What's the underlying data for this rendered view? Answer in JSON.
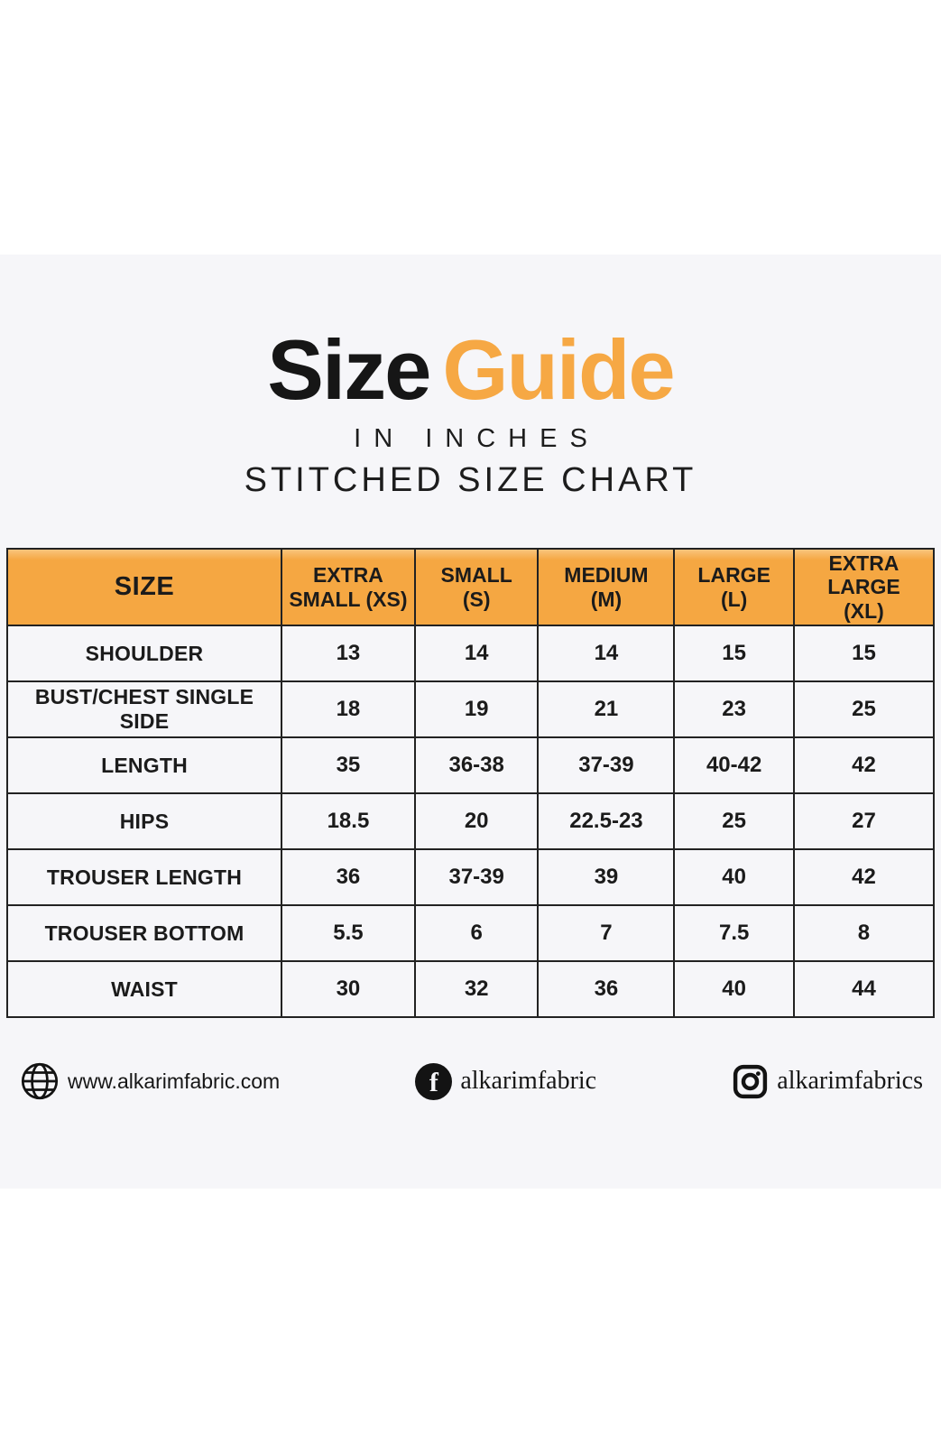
{
  "header": {
    "title_primary": "Size",
    "title_accent": "Guide",
    "subtitle_units": "IN INCHES",
    "subtitle_type": "STITCHED SIZE CHART"
  },
  "chart_data": {
    "type": "table",
    "title": "Size Guide",
    "subtitle": "IN INCHES — STITCHED SIZE CHART",
    "units": "inches",
    "columns": [
      "SIZE",
      "EXTRA SMALL (XS)",
      "SMALL (S)",
      "MEDIUM (M)",
      "LARGE (L)",
      "EXTRA LARGE (XL)"
    ],
    "header_display": [
      "SIZE",
      "EXTRA\nSMALL (XS)",
      "SMALL\n(S)",
      "MEDIUM\n(M)",
      "LARGE\n(L)",
      "EXTRA LARGE\n(XL)"
    ],
    "rows": [
      {
        "label": "SHOULDER",
        "values": [
          "13",
          "14",
          "14",
          "15",
          "15"
        ]
      },
      {
        "label": "BUST/CHEST SINGLE SIDE",
        "values": [
          "18",
          "19",
          "21",
          "23",
          "25"
        ]
      },
      {
        "label": "LENGTH",
        "values": [
          "35",
          "36-38",
          "37-39",
          "40-42",
          "42"
        ]
      },
      {
        "label": "HIPS",
        "values": [
          "18.5",
          "20",
          "22.5-23",
          "25",
          "27"
        ]
      },
      {
        "label": "TROUSER LENGTH",
        "values": [
          "36",
          "37-39",
          "39",
          "40",
          "42"
        ]
      },
      {
        "label": "TROUSER BOTTOM",
        "values": [
          "5.5",
          "6",
          "7",
          "7.5",
          "8"
        ]
      },
      {
        "label": "WAIST",
        "values": [
          "30",
          "32",
          "36",
          "40",
          "44"
        ]
      }
    ]
  },
  "footer": {
    "website": {
      "icon": "globe-icon",
      "label": "www.alkarimfabric.com"
    },
    "facebook": {
      "icon": "facebook-icon",
      "label": "alkarimfabric"
    },
    "instagram": {
      "icon": "instagram-icon",
      "label": "alkarimfabrics"
    }
  },
  "colors": {
    "accent_orange": "#F5A742",
    "table_border": "#222222",
    "text": "#161616",
    "content_bg": "#F6F6F9",
    "page_bg": "#FFFFFF"
  }
}
